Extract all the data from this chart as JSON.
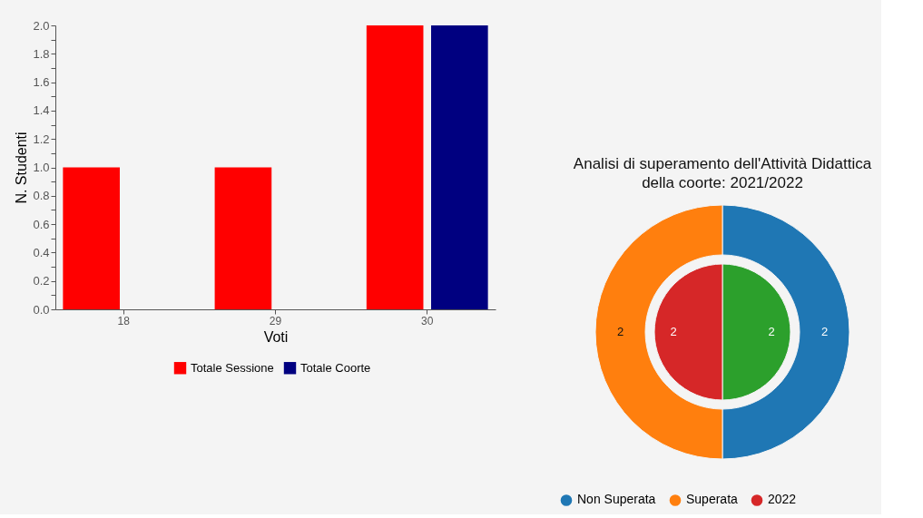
{
  "chart_data": [
    {
      "type": "bar",
      "xlabel": "Voti",
      "ylabel": "N. Studenti",
      "categories": [
        "18",
        "29",
        "30"
      ],
      "series": [
        {
          "name": "Totale Sessione",
          "color": "#ff0000",
          "values": [
            1,
            1,
            2
          ]
        },
        {
          "name": "Totale Coorte",
          "color": "#000080",
          "values": [
            0,
            0,
            2
          ]
        }
      ],
      "ylim": [
        0,
        2
      ],
      "yticks": [
        {
          "value": 0,
          "label": "0.0"
        },
        {
          "value": 0.1,
          "label": null
        },
        {
          "value": 0.2,
          "label": "0.2"
        },
        {
          "value": 0.3,
          "label": null
        },
        {
          "value": 0.4,
          "label": "0.4"
        },
        {
          "value": 0.5,
          "label": null
        },
        {
          "value": 0.6,
          "label": "0.6"
        },
        {
          "value": 0.7,
          "label": null
        },
        {
          "value": 0.8,
          "label": "0.8"
        },
        {
          "value": 0.9,
          "label": null
        },
        {
          "value": 1,
          "label": "1.0"
        },
        {
          "value": 1.1,
          "label": null
        },
        {
          "value": 1.2,
          "label": "1.2"
        },
        {
          "value": 1.3,
          "label": null
        },
        {
          "value": 1.4,
          "label": "1.4"
        },
        {
          "value": 1.5,
          "label": null
        },
        {
          "value": 1.6,
          "label": "1.6"
        },
        {
          "value": 1.7,
          "label": null
        },
        {
          "value": 1.8,
          "label": "1.8"
        },
        {
          "value": 1.9,
          "label": null
        },
        {
          "value": 2,
          "label": "2.0"
        }
      ],
      "grid": false,
      "legend": "bottom"
    },
    {
      "type": "donut",
      "title": "Analisi di superamento dell'Attività Didattica\ndella coorte: 2021/2022",
      "categories": [
        "Non Superata",
        "Superata"
      ],
      "series": [
        {
          "type": "donut",
          "values": [
            2,
            2
          ],
          "colors": [
            "#1f77b4",
            "#ff7f0e"
          ]
        },
        {
          "type": "pie",
          "name": "2022",
          "color": "#d62728",
          "values": [
            2,
            2
          ],
          "colors": [
            "#2ca02c",
            "#d62728"
          ]
        }
      ],
      "data_labels": true,
      "legend": "bottom"
    }
  ]
}
